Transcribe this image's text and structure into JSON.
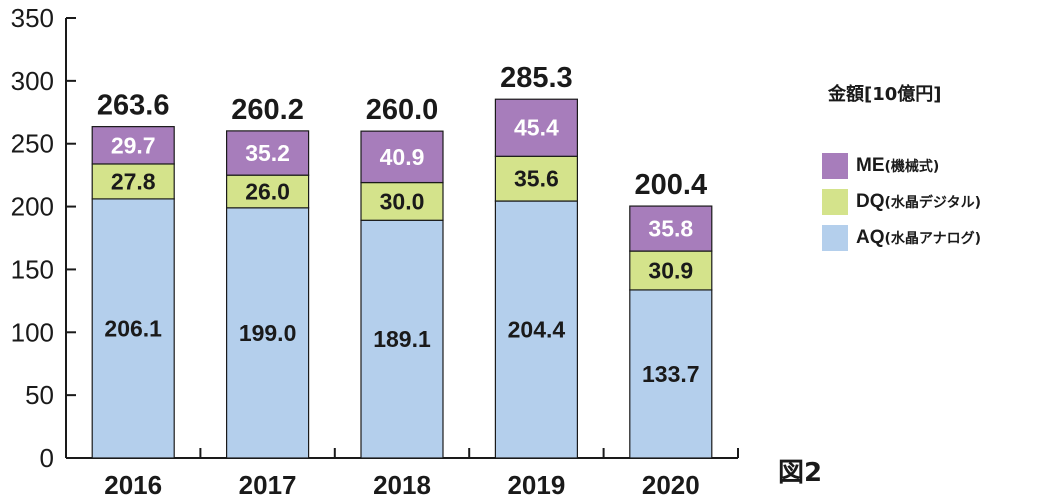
{
  "chart_data": {
    "type": "bar",
    "stacked": true,
    "categories": [
      "2016",
      "2017",
      "2018",
      "2019",
      "2020"
    ],
    "series": [
      {
        "name": "AQ",
        "name_note": "(水晶アナログ)",
        "color": "#b4cfec",
        "label_color": "#1a1a1a",
        "values": [
          206.1,
          199.0,
          189.1,
          204.4,
          133.7
        ],
        "labels": [
          "206.1",
          "199.0",
          "189.1",
          "204.4",
          "133.7"
        ]
      },
      {
        "name": "DQ",
        "name_note": "(水晶デジタル)",
        "color": "#d4e38b",
        "label_color": "#1a1a1a",
        "values": [
          27.8,
          26.0,
          30.0,
          35.6,
          30.9
        ],
        "labels": [
          "27.8",
          "26.0",
          "30.0",
          "35.6",
          "30.9"
        ]
      },
      {
        "name": "ME",
        "name_note": "(機械式)",
        "color": "#a77dbb",
        "label_color": "#ffffff",
        "values": [
          29.7,
          35.2,
          40.9,
          45.4,
          35.8
        ],
        "labels": [
          "29.7",
          "35.2",
          "40.9",
          "45.4",
          "35.8"
        ]
      }
    ],
    "totals": [
      "263.6",
      "260.2",
      "260.0",
      "285.3",
      "200.4"
    ],
    "ylim": [
      0,
      350
    ],
    "yticks": [
      "0",
      "50",
      "100",
      "150",
      "200",
      "250",
      "300",
      "350"
    ],
    "unit_label": "金額[10億円]",
    "figure_label": "図2",
    "legend_position": "right",
    "grid": false
  }
}
